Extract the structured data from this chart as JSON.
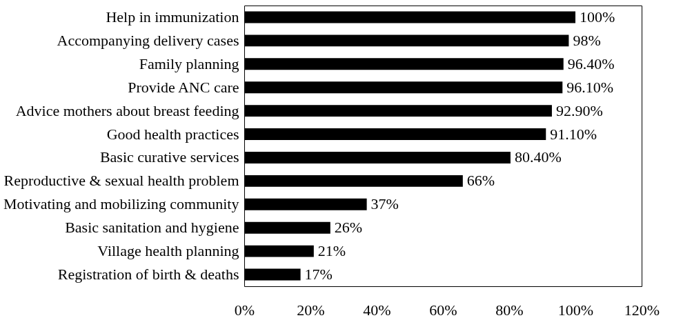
{
  "chart_data": {
    "type": "bar",
    "orientation": "horizontal",
    "categories": [
      "Help in immunization",
      "Accompanying delivery cases",
      "Family planning",
      "Provide ANC care",
      "Advice mothers about breast feeding",
      "Good health practices",
      "Basic curative services",
      "Reproductive & sexual health problem",
      "Motivating and mobilizing community",
      "Basic sanitation and hygiene",
      "Village health planning",
      "Registration of birth & deaths"
    ],
    "values": [
      100,
      98,
      96.4,
      96.1,
      92.9,
      91.1,
      80.4,
      66,
      37,
      26,
      21,
      17
    ],
    "value_labels": [
      "100%",
      "98%",
      "96.40%",
      "96.10%",
      "92.90%",
      "91.10%",
      "80.40%",
      "66%",
      "37%",
      "26%",
      "21%",
      "17%"
    ],
    "color": "#000000",
    "xlim": [
      0,
      120
    ],
    "xticks": [
      {
        "value": 0,
        "label": "0%"
      },
      {
        "value": 20,
        "label": "20%"
      },
      {
        "value": 40,
        "label": "40%"
      },
      {
        "value": 60,
        "label": "60%"
      },
      {
        "value": 80,
        "label": "80%"
      },
      {
        "value": 100,
        "label": "100%"
      },
      {
        "value": 120,
        "label": "120%"
      }
    ],
    "grid": false
  }
}
